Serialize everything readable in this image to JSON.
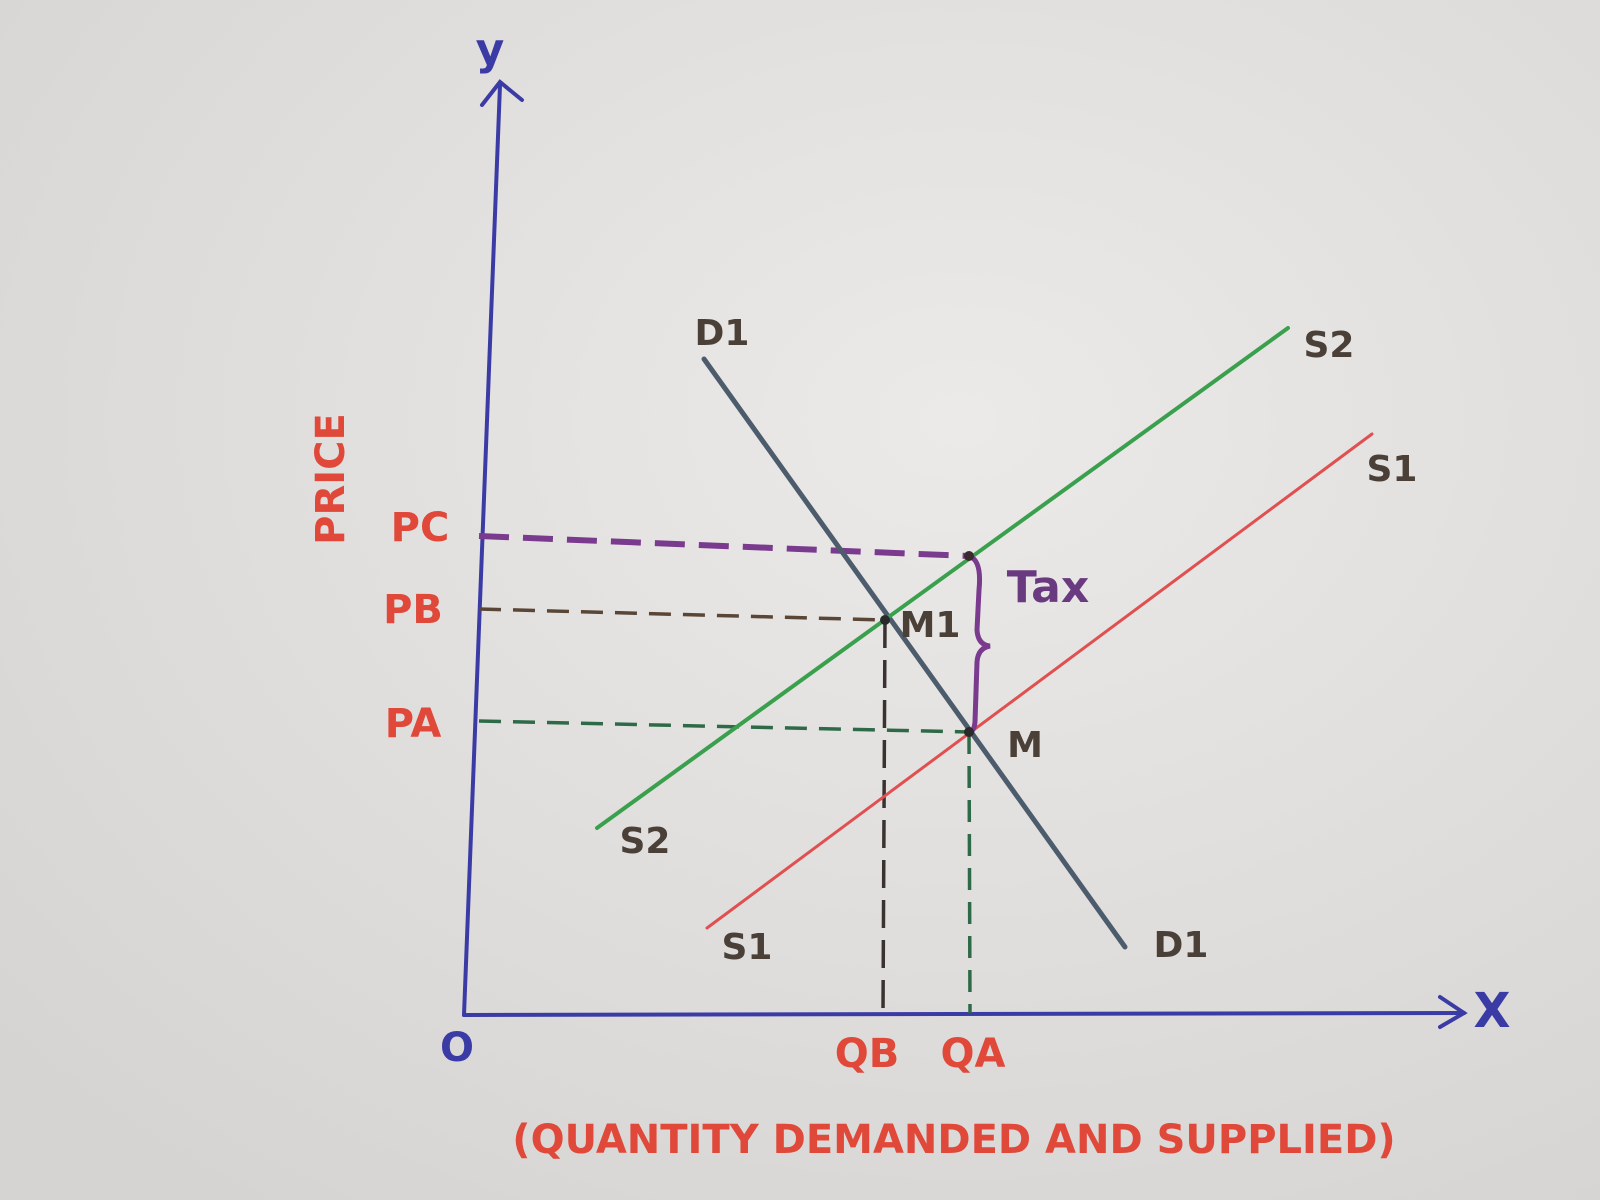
{
  "axes": {
    "y_label": "y",
    "x_label": "X",
    "origin": "O",
    "y_title": "PRICE",
    "x_title": "(QUANTITY DEMANDED AND SUPPLIED)"
  },
  "price_levels": [
    "PC",
    "PB",
    "PA"
  ],
  "quantity_levels": [
    "QB",
    "QA"
  ],
  "curves": [
    {
      "start_label": "D1",
      "end_label": "D1"
    },
    {
      "start_label": "S2",
      "end_label": "S2"
    },
    {
      "start_label": "S1",
      "end_label": "S1"
    }
  ],
  "points": [
    "M1",
    "M"
  ],
  "annotation": "Tax"
}
